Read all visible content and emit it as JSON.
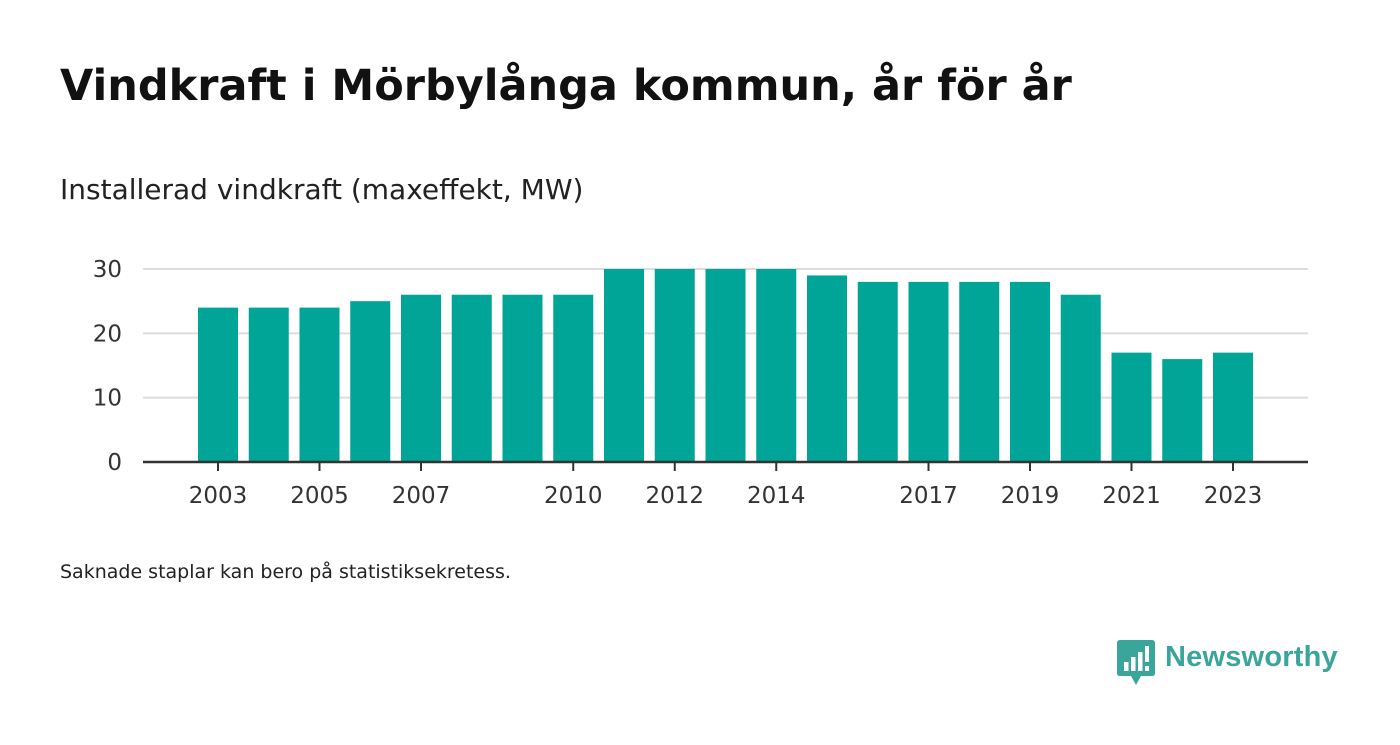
{
  "title": "Vindkraft i Mörbylånga kommun, år för år",
  "subtitle": "Installerad vindkraft (maxeffekt, MW)",
  "footnote": "Saknade staplar kan bero på statistiksekretess.",
  "brand": {
    "name": "Newsworthy",
    "color": "#3aa59a",
    "icon": "newsworthy-logo-icon"
  },
  "chart_data": {
    "type": "bar",
    "categories": [
      "2003",
      "2004",
      "2005",
      "2006",
      "2007",
      "2008",
      "2009",
      "2010",
      "2011",
      "2012",
      "2013",
      "2014",
      "2015",
      "2016",
      "2017",
      "2018",
      "2019",
      "2020",
      "2021",
      "2022",
      "2023"
    ],
    "values": [
      24,
      24,
      24,
      25,
      26,
      26,
      26,
      26,
      30,
      30,
      30,
      30,
      29,
      28,
      28,
      28,
      28,
      26,
      17,
      16,
      17
    ],
    "x_tick_labels": [
      "2003",
      "2005",
      "2007",
      "2010",
      "2012",
      "2014",
      "2017",
      "2019",
      "2021",
      "2023"
    ],
    "y_ticks": [
      0,
      10,
      20,
      30
    ],
    "ylim": [
      0,
      30
    ],
    "grid": true,
    "bar_color": "#00a598",
    "title": "Vindkraft i Mörbylånga kommun, år för år",
    "xlabel": "",
    "ylabel": ""
  }
}
